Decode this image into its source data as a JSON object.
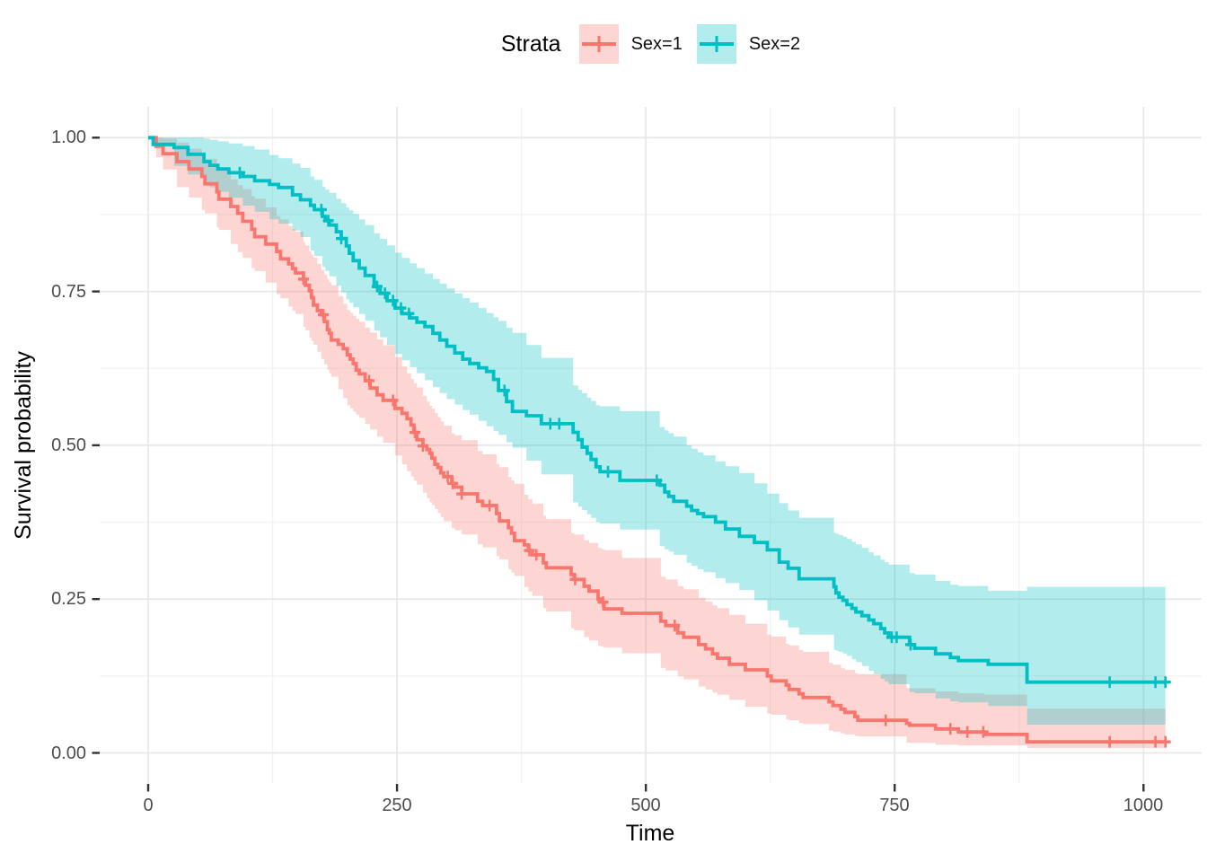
{
  "legend": {
    "title": "Strata",
    "items": [
      {
        "label": "Sex=1",
        "color": "#F8766D"
      },
      {
        "label": "Sex=2",
        "color": "#00BFC4"
      }
    ]
  },
  "axes": {
    "x": {
      "label": "Time",
      "tick_labels": [
        "0",
        "250",
        "500",
        "750",
        "1000"
      ]
    },
    "y": {
      "label": "Survival probability",
      "tick_labels": [
        "1.00",
        "0.75",
        "0.50",
        "0.25",
        "0.00"
      ]
    }
  },
  "style": {
    "background": "#FFFFFF",
    "grid_major_color": "#E8E8E8",
    "grid_minor_color": "#F2F2F2",
    "tick_mark_color": "#333333",
    "tick_label_color": "#4D4D4D",
    "axis_title_color": "#000000",
    "band_opacity": 0.3
  },
  "chart_data": {
    "type": "line",
    "subtype": "kaplan-meier-step",
    "title": "Strata",
    "xlabel": "Time",
    "ylabel": "Survival probability",
    "xticks": [
      0,
      250,
      500,
      750,
      1000
    ],
    "yticks": [
      0,
      0.25,
      0.5,
      0.75,
      1
    ],
    "xlim": [
      -51,
      1073
    ],
    "ylim": [
      -0.05,
      1.05
    ],
    "grid": true,
    "legend_position": "top",
    "series": [
      {
        "name": "sex1",
        "label": "Sex=1",
        "color": "#F8766D",
        "steps": [
          [
            8,
            0.986
          ],
          [
            15,
            0.974
          ],
          [
            29,
            0.961
          ],
          [
            41,
            0.949
          ],
          [
            54,
            0.937
          ],
          [
            57,
            0.925
          ],
          [
            69,
            0.912
          ],
          [
            71,
            0.9
          ],
          [
            83,
            0.888
          ],
          [
            90,
            0.877
          ],
          [
            95,
            0.864
          ],
          [
            104,
            0.851
          ],
          [
            107,
            0.839
          ],
          [
            118,
            0.827
          ],
          [
            129,
            0.815
          ],
          [
            133,
            0.803
          ],
          [
            141,
            0.795
          ],
          [
            145,
            0.787
          ],
          [
            148,
            0.78
          ],
          [
            156,
            0.77
          ],
          [
            158,
            0.76
          ],
          [
            162,
            0.751
          ],
          [
            164,
            0.74
          ],
          [
            166,
            0.728
          ],
          [
            170,
            0.719
          ],
          [
            174,
            0.712
          ],
          [
            177,
            0.701
          ],
          [
            180,
            0.688
          ],
          [
            182,
            0.682
          ],
          [
            184,
            0.671
          ],
          [
            191,
            0.664
          ],
          [
            196,
            0.657
          ],
          [
            200,
            0.647
          ],
          [
            203,
            0.64
          ],
          [
            206,
            0.633
          ],
          [
            209,
            0.622
          ],
          [
            212,
            0.616
          ],
          [
            218,
            0.605
          ],
          [
            223,
            0.593
          ],
          [
            230,
            0.582
          ],
          [
            236,
            0.573
          ],
          [
            248,
            0.56
          ],
          [
            255,
            0.552
          ],
          [
            260,
            0.543
          ],
          [
            264,
            0.533
          ],
          [
            267,
            0.521
          ],
          [
            270,
            0.509
          ],
          [
            276,
            0.499
          ],
          [
            280,
            0.493
          ],
          [
            283,
            0.487
          ],
          [
            285,
            0.479
          ],
          [
            288,
            0.469
          ],
          [
            291,
            0.464
          ],
          [
            294,
            0.455
          ],
          [
            297,
            0.449
          ],
          [
            305,
            0.438
          ],
          [
            308,
            0.432
          ],
          [
            315,
            0.421
          ],
          [
            331,
            0.409
          ],
          [
            336,
            0.402
          ],
          [
            350,
            0.389
          ],
          [
            353,
            0.377
          ],
          [
            362,
            0.366
          ],
          [
            365,
            0.357
          ],
          [
            368,
            0.345
          ],
          [
            378,
            0.338
          ],
          [
            382,
            0.329
          ],
          [
            386,
            0.322
          ],
          [
            397,
            0.309
          ],
          [
            400,
            0.301
          ],
          [
            425,
            0.29
          ],
          [
            428,
            0.282
          ],
          [
            438,
            0.271
          ],
          [
            443,
            0.263
          ],
          [
            452,
            0.25
          ],
          [
            455,
            0.245
          ],
          [
            458,
            0.234
          ],
          [
            476,
            0.227
          ],
          [
            515,
            0.214
          ],
          [
            520,
            0.207
          ],
          [
            532,
            0.195
          ],
          [
            538,
            0.188
          ],
          [
            553,
            0.176
          ],
          [
            560,
            0.169
          ],
          [
            567,
            0.161
          ],
          [
            572,
            0.154
          ],
          [
            584,
            0.144
          ],
          [
            600,
            0.135
          ],
          [
            622,
            0.125
          ],
          [
            626,
            0.117
          ],
          [
            641,
            0.11
          ],
          [
            644,
            0.103
          ],
          [
            654,
            0.096
          ],
          [
            658,
            0.09
          ],
          [
            684,
            0.083
          ],
          [
            688,
            0.077
          ],
          [
            696,
            0.071
          ],
          [
            700,
            0.066
          ],
          [
            710,
            0.059
          ],
          [
            713,
            0.053
          ],
          [
            762,
            0.048
          ],
          [
            765,
            0.045
          ],
          [
            791,
            0.039
          ],
          [
            814,
            0.034
          ],
          [
            840,
            0.03
          ],
          [
            883,
            0.018
          ],
          [
            1022,
            0.018
          ]
        ],
        "censor_times": [
          156,
          176,
          222,
          246,
          268,
          276,
          301,
          306,
          315,
          343,
          383,
          390,
          429,
          457,
          529,
          741,
          806,
          823,
          839,
          966,
          1012,
          1022
        ],
        "ci": [
          [
            0,
            1,
            1
          ],
          [
            10,
            0.96,
            1
          ],
          [
            25,
            0.925,
            0.995
          ],
          [
            50,
            0.89,
            0.975
          ],
          [
            100,
            0.795,
            0.91
          ],
          [
            150,
            0.71,
            0.845
          ],
          [
            200,
            0.565,
            0.72
          ],
          [
            250,
            0.48,
            0.64
          ],
          [
            300,
            0.37,
            0.525
          ],
          [
            350,
            0.32,
            0.47
          ],
          [
            400,
            0.23,
            0.38
          ],
          [
            450,
            0.175,
            0.335
          ],
          [
            500,
            0.15,
            0.3
          ],
          [
            550,
            0.11,
            0.255
          ],
          [
            600,
            0.075,
            0.21
          ],
          [
            650,
            0.05,
            0.17
          ],
          [
            700,
            0.03,
            0.135
          ],
          [
            750,
            0.018,
            0.108
          ],
          [
            800,
            0.012,
            0.098
          ],
          [
            850,
            0.012,
            0.094
          ],
          [
            883,
            0.008,
            0.072
          ],
          [
            1022,
            0.008,
            0.072
          ]
        ]
      },
      {
        "name": "sex2",
        "label": "Sex=2",
        "color": "#00BFC4",
        "steps": [
          [
            5,
            0.989
          ],
          [
            26,
            0.984
          ],
          [
            40,
            0.973
          ],
          [
            56,
            0.961
          ],
          [
            62,
            0.955
          ],
          [
            70,
            0.949
          ],
          [
            81,
            0.943
          ],
          [
            95,
            0.937
          ],
          [
            107,
            0.93
          ],
          [
            122,
            0.924
          ],
          [
            131,
            0.919
          ],
          [
            145,
            0.907
          ],
          [
            153,
            0.899
          ],
          [
            163,
            0.89
          ],
          [
            167,
            0.883
          ],
          [
            175,
            0.872
          ],
          [
            178,
            0.865
          ],
          [
            182,
            0.858
          ],
          [
            189,
            0.847
          ],
          [
            194,
            0.836
          ],
          [
            199,
            0.824
          ],
          [
            202,
            0.812
          ],
          [
            206,
            0.8
          ],
          [
            212,
            0.788
          ],
          [
            218,
            0.776
          ],
          [
            227,
            0.758
          ],
          [
            233,
            0.747
          ],
          [
            240,
            0.735
          ],
          [
            248,
            0.723
          ],
          [
            255,
            0.714
          ],
          [
            263,
            0.707
          ],
          [
            270,
            0.7
          ],
          [
            278,
            0.693
          ],
          [
            286,
            0.682
          ],
          [
            293,
            0.671
          ],
          [
            300,
            0.661
          ],
          [
            308,
            0.65
          ],
          [
            316,
            0.64
          ],
          [
            323,
            0.633
          ],
          [
            332,
            0.626
          ],
          [
            340,
            0.62
          ],
          [
            347,
            0.607
          ],
          [
            352,
            0.589
          ],
          [
            360,
            0.571
          ],
          [
            366,
            0.555
          ],
          [
            380,
            0.548
          ],
          [
            395,
            0.535
          ],
          [
            427,
            0.521
          ],
          [
            432,
            0.509
          ],
          [
            436,
            0.497
          ],
          [
            441,
            0.487
          ],
          [
            445,
            0.477
          ],
          [
            450,
            0.465
          ],
          [
            454,
            0.457
          ],
          [
            474,
            0.443
          ],
          [
            514,
            0.435
          ],
          [
            519,
            0.424
          ],
          [
            523,
            0.417
          ],
          [
            528,
            0.409
          ],
          [
            541,
            0.401
          ],
          [
            546,
            0.394
          ],
          [
            552,
            0.389
          ],
          [
            558,
            0.384
          ],
          [
            570,
            0.375
          ],
          [
            580,
            0.364
          ],
          [
            594,
            0.352
          ],
          [
            609,
            0.342
          ],
          [
            622,
            0.33
          ],
          [
            634,
            0.31
          ],
          [
            643,
            0.3
          ],
          [
            654,
            0.283
          ],
          [
            689,
            0.27
          ],
          [
            691,
            0.26
          ],
          [
            694,
            0.253
          ],
          [
            698,
            0.248
          ],
          [
            702,
            0.241
          ],
          [
            707,
            0.235
          ],
          [
            711,
            0.229
          ],
          [
            717,
            0.223
          ],
          [
            724,
            0.216
          ],
          [
            729,
            0.21
          ],
          [
            736,
            0.202
          ],
          [
            740,
            0.195
          ],
          [
            744,
            0.188
          ],
          [
            765,
            0.176
          ],
          [
            770,
            0.17
          ],
          [
            791,
            0.161
          ],
          [
            806,
            0.155
          ],
          [
            814,
            0.15
          ],
          [
            844,
            0.144
          ],
          [
            883,
            0.115
          ],
          [
            1022,
            0.115
          ]
        ],
        "censor_times": [
          92,
          174,
          181,
          194,
          230,
          238,
          246,
          254,
          262,
          358,
          404,
          413,
          462,
          511,
          747,
          752,
          766,
          966,
          1012,
          1022
        ],
        "ci": [
          [
            0,
            1,
            1
          ],
          [
            10,
            0.97,
            1
          ],
          [
            25,
            0.955,
            1
          ],
          [
            50,
            0.93,
            1
          ],
          [
            100,
            0.885,
            0.985
          ],
          [
            150,
            0.845,
            0.955
          ],
          [
            200,
            0.735,
            0.885
          ],
          [
            250,
            0.645,
            0.81
          ],
          [
            300,
            0.575,
            0.755
          ],
          [
            350,
            0.52,
            0.705
          ],
          [
            400,
            0.445,
            0.635
          ],
          [
            450,
            0.375,
            0.565
          ],
          [
            500,
            0.35,
            0.545
          ],
          [
            550,
            0.3,
            0.49
          ],
          [
            600,
            0.26,
            0.45
          ],
          [
            650,
            0.195,
            0.385
          ],
          [
            700,
            0.16,
            0.35
          ],
          [
            750,
            0.105,
            0.3
          ],
          [
            800,
            0.085,
            0.275
          ],
          [
            850,
            0.075,
            0.262
          ],
          [
            883,
            0.046,
            0.27
          ],
          [
            1022,
            0.046,
            0.27
          ]
        ]
      }
    ]
  }
}
